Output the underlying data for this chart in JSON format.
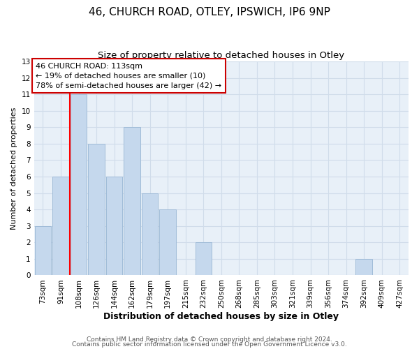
{
  "title1": "46, CHURCH ROAD, OTLEY, IPSWICH, IP6 9NP",
  "title2": "Size of property relative to detached houses in Otley",
  "xlabel": "Distribution of detached houses by size in Otley",
  "ylabel": "Number of detached properties",
  "bin_labels": [
    "73sqm",
    "91sqm",
    "108sqm",
    "126sqm",
    "144sqm",
    "162sqm",
    "179sqm",
    "197sqm",
    "215sqm",
    "232sqm",
    "250sqm",
    "268sqm",
    "285sqm",
    "303sqm",
    "321sqm",
    "339sqm",
    "356sqm",
    "374sqm",
    "392sqm",
    "409sqm",
    "427sqm"
  ],
  "bar_heights": [
    3,
    6,
    11,
    8,
    6,
    9,
    5,
    4,
    0,
    2,
    0,
    0,
    0,
    0,
    0,
    0,
    0,
    0,
    1,
    0,
    0
  ],
  "bar_color": "#c5d8ed",
  "bar_edge_color": "#a0bcd8",
  "grid_color": "#d0dcea",
  "background_color": "#e8f0f8",
  "red_line_index": 2,
  "annotation_text": "46 CHURCH ROAD: 113sqm\n← 19% of detached houses are smaller (10)\n78% of semi-detached houses are larger (42) →",
  "annotation_box_color": "#ffffff",
  "annotation_box_edge": "#cc0000",
  "ylim": [
    0,
    13
  ],
  "yticks": [
    0,
    1,
    2,
    3,
    4,
    5,
    6,
    7,
    8,
    9,
    10,
    11,
    12,
    13
  ],
  "footer1": "Contains HM Land Registry data © Crown copyright and database right 2024.",
  "footer2": "Contains public sector information licensed under the Open Government Licence v3.0.",
  "title1_fontsize": 11,
  "title2_fontsize": 9.5,
  "xlabel_fontsize": 9,
  "ylabel_fontsize": 8,
  "tick_fontsize": 7.5,
  "footer_fontsize": 6.5,
  "annot_fontsize": 8
}
